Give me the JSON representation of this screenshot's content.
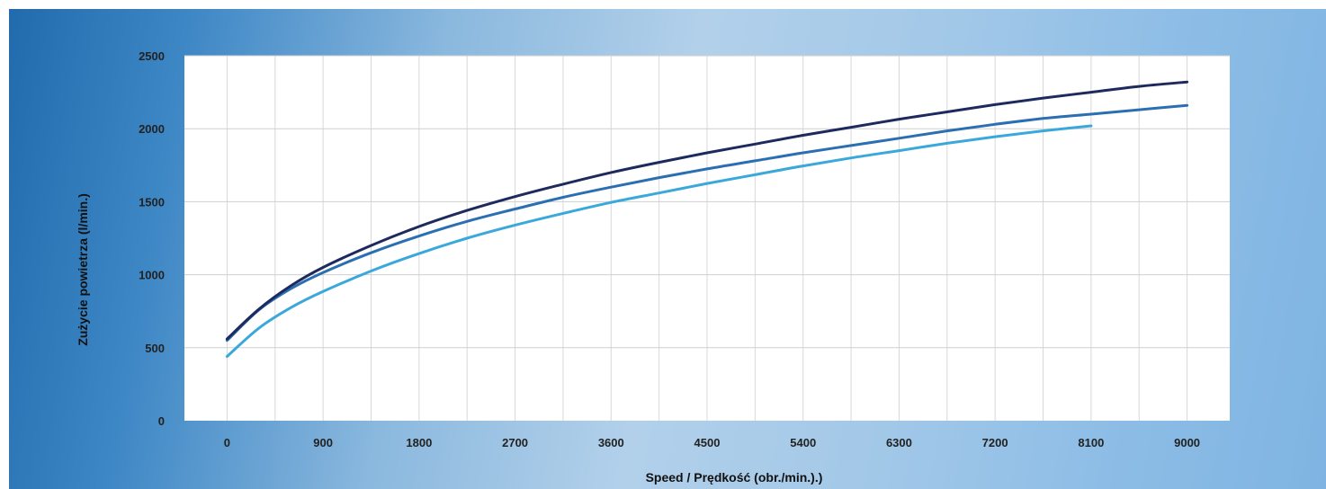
{
  "chart_data": {
    "type": "line",
    "title": "",
    "xlabel": "Speed / Prędkość (obr./min.).)",
    "ylabel": "Zużycie powietrza (l/min.)",
    "x_ticks": [
      0,
      900,
      1800,
      2700,
      3600,
      4500,
      5400,
      6300,
      7200,
      8100,
      9000
    ],
    "y_ticks": [
      0,
      500,
      1000,
      1500,
      2000,
      2500
    ],
    "xlim": [
      -400,
      9400
    ],
    "ylim": [
      0,
      2500
    ],
    "grid": true,
    "legend": "none",
    "colors": [
      "#1e2a5e",
      "#2b6fb3",
      "#3ba8dc"
    ],
    "series": [
      {
        "x": [
          0,
          300,
          600,
          900,
          1350,
          1800,
          2250,
          2700,
          3150,
          3600,
          4050,
          4500,
          4950,
          5400,
          5850,
          6300,
          6750,
          7200,
          7650,
          8100,
          8550,
          9000
        ],
        "y": [
          560,
          765,
          925,
          1050,
          1200,
          1330,
          1440,
          1535,
          1620,
          1700,
          1770,
          1835,
          1895,
          1955,
          2010,
          2065,
          2115,
          2165,
          2210,
          2250,
          2290,
          2320
        ]
      },
      {
        "x": [
          0,
          300,
          600,
          900,
          1350,
          1800,
          2250,
          2700,
          3150,
          3600,
          4050,
          4500,
          4950,
          5400,
          5850,
          6300,
          6750,
          7200,
          7650,
          8100,
          8550,
          9000
        ],
        "y": [
          550,
          760,
          905,
          1015,
          1150,
          1265,
          1365,
          1450,
          1530,
          1600,
          1665,
          1725,
          1780,
          1835,
          1885,
          1935,
          1985,
          2030,
          2070,
          2100,
          2130,
          2160
        ]
      },
      {
        "x": [
          0,
          300,
          600,
          900,
          1350,
          1800,
          2250,
          2700,
          3150,
          3600,
          4050,
          4500,
          4950,
          5400,
          5850,
          6300,
          6750,
          7200,
          7650,
          8100
        ],
        "y": [
          440,
          635,
          775,
          885,
          1025,
          1145,
          1250,
          1340,
          1420,
          1495,
          1560,
          1625,
          1685,
          1745,
          1800,
          1850,
          1900,
          1945,
          1985,
          2020
        ]
      }
    ]
  }
}
